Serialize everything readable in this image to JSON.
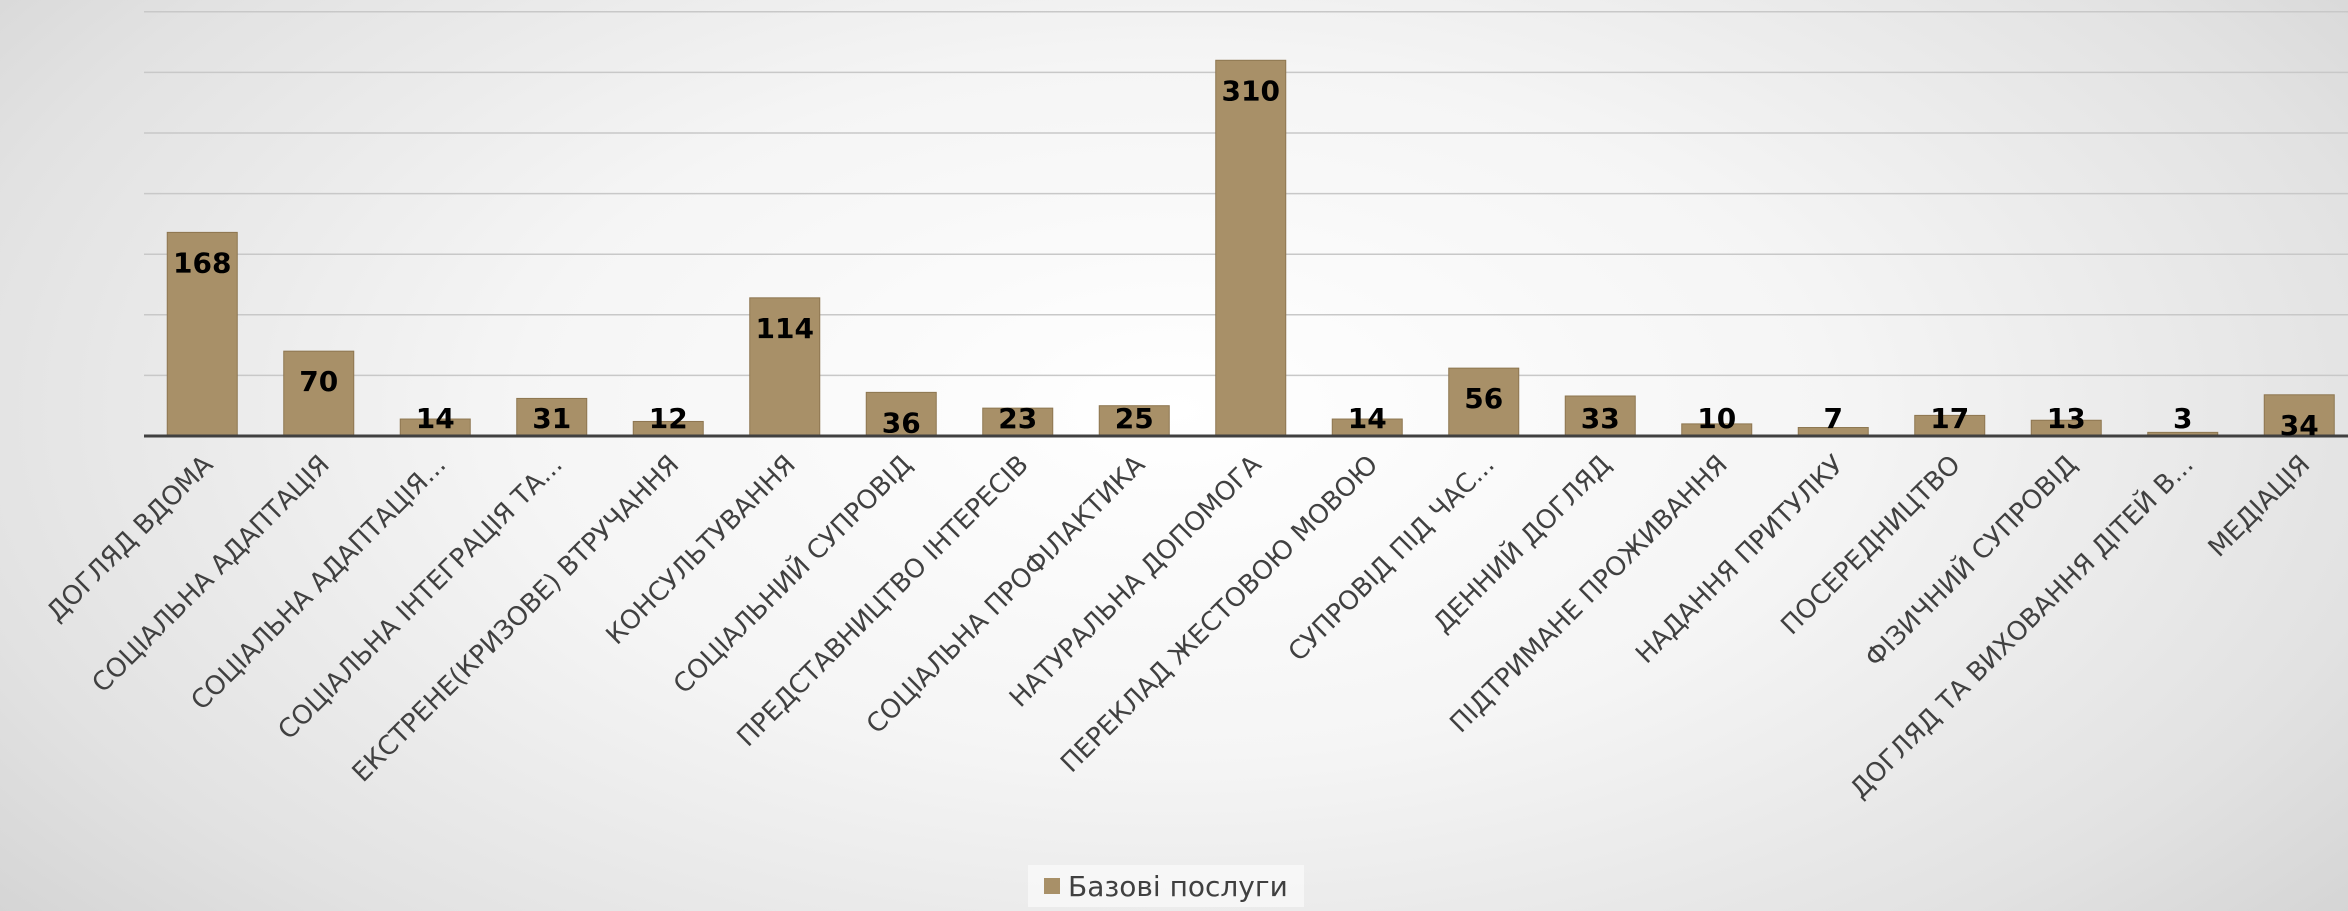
{
  "chart_data": {
    "type": "bar",
    "categories": [
      "ДОГЛЯД ВДОМА",
      "СОЦІАЛЬНА АДАПТАЦІЯ",
      "СОЦІАЛЬНА АДАПТАЦІЯ...",
      "СОЦІАЛЬНА ІНТЕГРАЦІЯ ТА...",
      "ЕКСТРЕНЕ(КРИЗОВЕ) ВТРУЧАННЯ",
      "КОНСУЛЬТУВАННЯ",
      "СОЦІАЛЬНИЙ СУПРОВІД",
      "ПРЕДСТАВНИЦТВО ІНТЕРЕСІВ",
      "СОЦІАЛЬНА ПРОФІЛАКТИКА",
      "НАТУРАЛЬНА ДОПОМОГА",
      "ПЕРЕКЛАД ЖЕСТОВОЮ МОВОЮ",
      "СУПРОВІД ПІД ЧАС...",
      "ДЕННИЙ ДОГЛЯД",
      "ПІДТРИМАНЕ ПРОЖИВАННЯ",
      "НАДАННЯ ПРИТУЛКУ",
      "ПОСЕРЕДНИЦТВО",
      "ФІЗИЧНИЙ СУПРОВІД",
      "ДОГЛЯД ТА ВИХОВАННЯ ДІТЕЙ В...",
      "МЕДІАЦІЯ"
    ],
    "series": [
      {
        "name": "Базові послуги",
        "values": [
          168,
          70,
          14,
          31,
          12,
          114,
          36,
          23,
          25,
          310,
          14,
          56,
          33,
          10,
          7,
          17,
          13,
          3,
          34
        ],
        "data_labels": [
          "168",
          "70",
          "14",
          "31",
          "12",
          "114",
          "36",
          "23",
          "25",
          "310",
          "14",
          "56",
          "33",
          "10",
          "7",
          "17",
          "13",
          "3",
          "34"
        ]
      }
    ],
    "ylim": [
      0,
      350
    ],
    "ytick_step": 50,
    "grid": true,
    "legend": "bottom",
    "bar_color": "#A89068",
    "bar_edge_color": "#8d7650",
    "axis_color": "#404040",
    "grid_color": "#c8c8c8",
    "label_color": "#000000",
    "category_label_color": "#404040"
  }
}
